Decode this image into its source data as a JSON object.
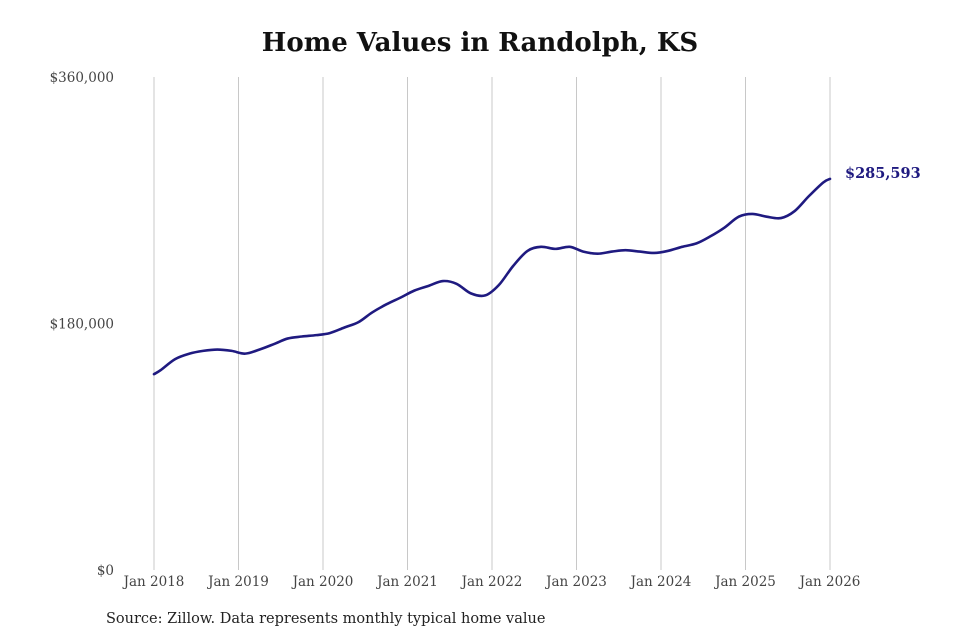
{
  "colors": {
    "line": "#1f1a80",
    "gridline": "#c8c8c8",
    "end_label": "#1f1a80"
  },
  "chart_data": {
    "type": "line",
    "title": "Home Values in Randolph, KS",
    "xlabel": "",
    "ylabel": "",
    "grid": {
      "vertical": true,
      "horizontal": false
    },
    "ylim": [
      0,
      360000
    ],
    "y_ticks": [
      {
        "value": 0,
        "label": "$0"
      },
      {
        "value": 180000,
        "label": "$180,000"
      },
      {
        "value": 360000,
        "label": "$360,000"
      }
    ],
    "x_ticks": [
      {
        "value": 2018,
        "label": "Jan 2018"
      },
      {
        "value": 2019,
        "label": "Jan 2019"
      },
      {
        "value": 2020,
        "label": "Jan 2020"
      },
      {
        "value": 2021,
        "label": "Jan 2021"
      },
      {
        "value": 2022,
        "label": "Jan 2022"
      },
      {
        "value": 2023,
        "label": "Jan 2023"
      },
      {
        "value": 2024,
        "label": "Jan 2024"
      },
      {
        "value": 2025,
        "label": "Jan 2025"
      },
      {
        "value": 2026,
        "label": "Jan 2026"
      }
    ],
    "xlim": [
      2018,
      2026
    ],
    "series": [
      {
        "points": [
          [
            2018.0,
            143000
          ],
          [
            2018.08,
            146000
          ],
          [
            2018.25,
            154000
          ],
          [
            2018.42,
            158000
          ],
          [
            2018.58,
            160000
          ],
          [
            2018.75,
            161000
          ],
          [
            2018.92,
            160000
          ],
          [
            2019.08,
            158000
          ],
          [
            2019.25,
            161000
          ],
          [
            2019.42,
            165000
          ],
          [
            2019.58,
            169000
          ],
          [
            2019.75,
            170500
          ],
          [
            2019.92,
            171500
          ],
          [
            2020.08,
            173000
          ],
          [
            2020.25,
            177000
          ],
          [
            2020.42,
            181000
          ],
          [
            2020.58,
            188000
          ],
          [
            2020.75,
            194000
          ],
          [
            2020.92,
            199000
          ],
          [
            2021.08,
            204000
          ],
          [
            2021.25,
            207500
          ],
          [
            2021.42,
            211000
          ],
          [
            2021.58,
            209000
          ],
          [
            2021.75,
            202000
          ],
          [
            2021.92,
            200500
          ],
          [
            2022.08,
            208000
          ],
          [
            2022.25,
            222000
          ],
          [
            2022.42,
            233000
          ],
          [
            2022.58,
            236000
          ],
          [
            2022.75,
            234500
          ],
          [
            2022.92,
            236000
          ],
          [
            2023.08,
            232500
          ],
          [
            2023.25,
            231000
          ],
          [
            2023.42,
            232500
          ],
          [
            2023.58,
            233500
          ],
          [
            2023.75,
            232500
          ],
          [
            2023.92,
            231500
          ],
          [
            2024.08,
            233000
          ],
          [
            2024.25,
            236000
          ],
          [
            2024.42,
            238500
          ],
          [
            2024.58,
            243500
          ],
          [
            2024.75,
            250000
          ],
          [
            2024.92,
            258000
          ],
          [
            2025.08,
            260000
          ],
          [
            2025.25,
            258000
          ],
          [
            2025.42,
            257000
          ],
          [
            2025.58,
            262000
          ],
          [
            2025.75,
            273000
          ],
          [
            2025.92,
            283000
          ],
          [
            2026.0,
            285593
          ]
        ]
      }
    ],
    "end_label": "$285,593",
    "source": "Source: Zillow. Data represents monthly typical home value"
  }
}
